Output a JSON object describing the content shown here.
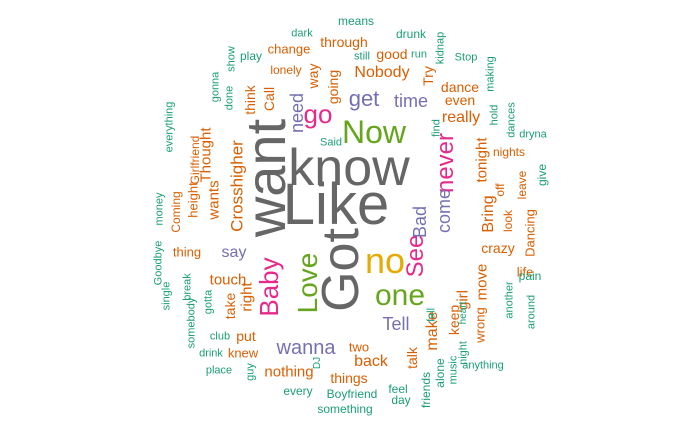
{
  "palette": {
    "gray": "#666666",
    "green": "#66a61e",
    "orange": "#d95f02",
    "purple": "#7570b3",
    "teal": "#1b9e77",
    "pink": "#e7298a",
    "yellow": "#e6ab02",
    "brown": "#a6761d"
  },
  "words": [
    {
      "text": "Like",
      "color": "gray"
    },
    {
      "text": "know",
      "color": "gray"
    },
    {
      "text": "want",
      "color": "gray"
    },
    {
      "text": "Got",
      "color": "gray"
    },
    {
      "text": "Now",
      "color": "green"
    },
    {
      "text": "no",
      "color": "yellow"
    },
    {
      "text": "one",
      "color": "green"
    },
    {
      "text": "Love",
      "color": "green"
    },
    {
      "text": "Baby",
      "color": "pink"
    },
    {
      "text": "See",
      "color": "pink"
    },
    {
      "text": "never",
      "color": "pink"
    },
    {
      "text": "go",
      "color": "pink"
    },
    {
      "text": "get",
      "color": "purple"
    },
    {
      "text": "time",
      "color": "purple"
    },
    {
      "text": "wanna",
      "color": "purple"
    },
    {
      "text": "Tell",
      "color": "purple"
    },
    {
      "text": "say",
      "color": "purple"
    },
    {
      "text": "Bad",
      "color": "purple"
    },
    {
      "text": "come",
      "color": "purple"
    },
    {
      "text": "need",
      "color": "purple"
    },
    {
      "text": "Nobody",
      "color": "orange"
    },
    {
      "text": "going",
      "color": "orange"
    },
    {
      "text": "way",
      "color": "orange"
    },
    {
      "text": "really",
      "color": "orange"
    },
    {
      "text": "even",
      "color": "orange"
    },
    {
      "text": "dance",
      "color": "orange"
    },
    {
      "text": "tonight",
      "color": "orange"
    },
    {
      "text": "Bring",
      "color": "orange"
    },
    {
      "text": "crazy",
      "color": "orange"
    },
    {
      "text": "move",
      "color": "orange"
    },
    {
      "text": "girl",
      "color": "orange"
    },
    {
      "text": "keep",
      "color": "orange"
    },
    {
      "text": "make",
      "color": "orange"
    },
    {
      "text": "talk",
      "color": "orange"
    },
    {
      "text": "back",
      "color": "orange"
    },
    {
      "text": "nothing",
      "color": "orange"
    },
    {
      "text": "things",
      "color": "orange"
    },
    {
      "text": "two",
      "color": "orange"
    },
    {
      "text": "touch",
      "color": "orange"
    },
    {
      "text": "right",
      "color": "orange"
    },
    {
      "text": "take",
      "color": "orange"
    },
    {
      "text": "put",
      "color": "orange"
    },
    {
      "text": "knew",
      "color": "orange"
    },
    {
      "text": "Crosshigher",
      "color": "orange"
    },
    {
      "text": "wants",
      "color": "orange"
    },
    {
      "text": "Thought",
      "color": "orange"
    },
    {
      "text": "think",
      "color": "orange"
    },
    {
      "text": "Call",
      "color": "orange"
    },
    {
      "text": "height",
      "color": "orange"
    },
    {
      "text": "Girlfriend",
      "color": "orange"
    },
    {
      "text": "Coming",
      "color": "orange"
    },
    {
      "text": "thing",
      "color": "orange"
    },
    {
      "text": "change",
      "color": "orange"
    },
    {
      "text": "lonely",
      "color": "orange"
    },
    {
      "text": "through",
      "color": "orange"
    },
    {
      "text": "good",
      "color": "orange"
    },
    {
      "text": "drunk",
      "color": "teal"
    },
    {
      "text": "means",
      "color": "teal"
    },
    {
      "text": "Try",
      "color": "orange"
    },
    {
      "text": "wrong",
      "color": "orange"
    },
    {
      "text": "life",
      "color": "orange"
    },
    {
      "text": "look",
      "color": "orange"
    },
    {
      "text": "Dancing",
      "color": "orange"
    },
    {
      "text": "off",
      "color": "orange"
    },
    {
      "text": "nights",
      "color": "orange"
    },
    {
      "text": "leave",
      "color": "orange"
    },
    {
      "text": "give",
      "color": "teal"
    },
    {
      "text": "dark",
      "color": "teal"
    },
    {
      "text": "run",
      "color": "teal"
    },
    {
      "text": "Stop",
      "color": "teal"
    },
    {
      "text": "kidnap",
      "color": "teal"
    },
    {
      "text": "still",
      "color": "teal"
    },
    {
      "text": "play",
      "color": "teal"
    },
    {
      "text": "show",
      "color": "teal"
    },
    {
      "text": "gonna",
      "color": "teal"
    },
    {
      "text": "done",
      "color": "teal"
    },
    {
      "text": "everything",
      "color": "teal"
    },
    {
      "text": "money",
      "color": "teal"
    },
    {
      "text": "Goodbye",
      "color": "teal"
    },
    {
      "text": "single",
      "color": "teal"
    },
    {
      "text": "break",
      "color": "teal"
    },
    {
      "text": "gotta",
      "color": "teal"
    },
    {
      "text": "somebody",
      "color": "teal"
    },
    {
      "text": "club",
      "color": "teal"
    },
    {
      "text": "drink",
      "color": "teal"
    },
    {
      "text": "place",
      "color": "teal"
    },
    {
      "text": "guy",
      "color": "teal"
    },
    {
      "text": "every",
      "color": "teal"
    },
    {
      "text": "Boyfriend",
      "color": "teal"
    },
    {
      "text": "something",
      "color": "teal"
    },
    {
      "text": "feel",
      "color": "teal"
    },
    {
      "text": "day",
      "color": "teal"
    },
    {
      "text": "friends",
      "color": "teal"
    },
    {
      "text": "alone",
      "color": "teal"
    },
    {
      "text": "music",
      "color": "teal"
    },
    {
      "text": "DJ",
      "color": "teal"
    },
    {
      "text": "fall",
      "color": "teal"
    },
    {
      "text": "heart",
      "color": "teal"
    },
    {
      "text": "night",
      "color": "teal"
    },
    {
      "text": "anything",
      "color": "teal"
    },
    {
      "text": "another",
      "color": "teal"
    },
    {
      "text": "around",
      "color": "teal"
    },
    {
      "text": "pain",
      "color": "teal"
    },
    {
      "text": "making",
      "color": "teal"
    },
    {
      "text": "dances",
      "color": "teal"
    },
    {
      "text": "dryna",
      "color": "teal"
    },
    {
      "text": "hold",
      "color": "teal"
    },
    {
      "text": "find",
      "color": "teal"
    },
    {
      "text": "Said",
      "color": "teal"
    }
  ]
}
